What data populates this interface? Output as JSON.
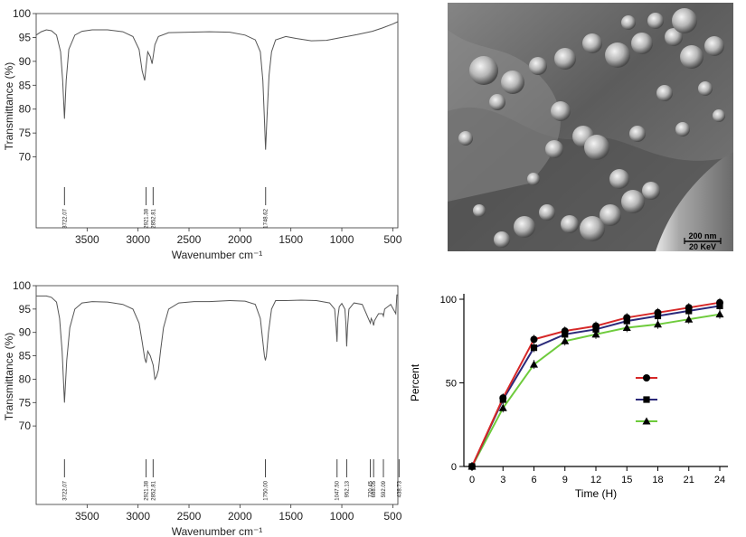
{
  "chart_data": [
    {
      "type": "line",
      "panel": "ftir-top",
      "ylabel": "Transmittance (%)",
      "xlabel": "Wavenumber cm⁻¹",
      "xlim": [
        4000,
        450
      ],
      "ylim": [
        65,
        100
      ],
      "xticks": [
        3500,
        3000,
        2500,
        2000,
        1500,
        1000,
        500
      ],
      "yticks": [
        70,
        75,
        80,
        85,
        90,
        95,
        100
      ],
      "peak_labels": [
        "3722.07",
        "2921.38",
        "2852.81",
        "1748.62"
      ],
      "peak_x": [
        3722,
        2921,
        2852,
        1748
      ],
      "series": [
        {
          "x": [
            4000,
            3950,
            3900,
            3850,
            3800,
            3760,
            3740,
            3722,
            3705,
            3680,
            3620,
            3550,
            3450,
            3300,
            3150,
            3050,
            2990,
            2960,
            2935,
            2921,
            2905,
            2880,
            2862,
            2852,
            2835,
            2800,
            2700,
            2500,
            2300,
            2100,
            1950,
            1850,
            1800,
            1775,
            1760,
            1748,
            1735,
            1715,
            1690,
            1650,
            1550,
            1450,
            1300,
            1150,
            1000,
            850,
            700,
            600,
            500,
            450
          ],
          "y": [
            95.5,
            96.2,
            96.6,
            96.4,
            95.5,
            92,
            86,
            78,
            86,
            92.5,
            95.5,
            96.3,
            96.6,
            96.6,
            96.2,
            95.2,
            92.5,
            88,
            86,
            89,
            92,
            91,
            89.5,
            91,
            93.5,
            95.2,
            96,
            96.1,
            96.2,
            96.1,
            95.5,
            94.5,
            92,
            86,
            78,
            71.5,
            78,
            87,
            92,
            94.5,
            95.2,
            94.8,
            94.3,
            94.4,
            95,
            95.6,
            96.3,
            97,
            97.8,
            98.3
          ]
        }
      ]
    },
    {
      "type": "line",
      "panel": "ftir-bottom",
      "ylabel": "Transmittance (%)",
      "xlabel": "Wavenumber cm⁻¹",
      "xlim": [
        4000,
        450
      ],
      "ylim": [
        65,
        100
      ],
      "xticks": [
        3500,
        3000,
        2500,
        2000,
        1500,
        1000,
        500
      ],
      "yticks": [
        70,
        75,
        80,
        85,
        90,
        95,
        100
      ],
      "peak_labels": [
        "3722.07",
        "2921.38",
        "2852.81",
        "1750.00",
        "1047.50",
        "952.13",
        "720.45",
        "688.05",
        "592.09",
        "438.73"
      ],
      "peak_x": [
        3722,
        2921,
        2852,
        1750,
        1047,
        952,
        720,
        688,
        592,
        438
      ],
      "series": [
        {
          "x": [
            4000,
            3950,
            3900,
            3850,
            3800,
            3770,
            3745,
            3722,
            3700,
            3670,
            3620,
            3550,
            3450,
            3300,
            3150,
            3050,
            2990,
            2960,
            2935,
            2921,
            2905,
            2880,
            2852,
            2835,
            2820,
            2800,
            2780,
            2750,
            2700,
            2600,
            2450,
            2300,
            2100,
            1950,
            1850,
            1800,
            1775,
            1760,
            1750,
            1740,
            1720,
            1690,
            1650,
            1550,
            1400,
            1250,
            1120,
            1070,
            1055,
            1047,
            1040,
            1025,
            1000,
            970,
            960,
            952,
            944,
            930,
            880,
            800,
            760,
            740,
            720,
            712,
            700,
            688,
            680,
            640,
            600,
            592,
            580,
            520,
            470,
            460,
            450
          ],
          "y": [
            97.8,
            97.8,
            97.8,
            97.5,
            96.5,
            93,
            86,
            75,
            84,
            91,
            95,
            96.3,
            96.6,
            96.5,
            96,
            95,
            92,
            88,
            84.5,
            83.5,
            86,
            85,
            83,
            80,
            80.5,
            82,
            86,
            91,
            95,
            96.3,
            96.6,
            96.6,
            96.8,
            96.7,
            96,
            93,
            88,
            85,
            84,
            85,
            90,
            95,
            96.8,
            96.8,
            96.9,
            96.8,
            96.3,
            95,
            91,
            88,
            93,
            95.5,
            96.2,
            95,
            92,
            87,
            91,
            95,
            96.3,
            96,
            94,
            93,
            92,
            93,
            92.5,
            91.5,
            92.5,
            94,
            94,
            93.5,
            95,
            96,
            94,
            98,
            98
          ]
        }
      ]
    },
    {
      "type": "line",
      "panel": "release",
      "xlabel": "Time (H)",
      "ylabel": "Percent",
      "xlim": [
        0,
        24
      ],
      "ylim": [
        0,
        100
      ],
      "xticks": [
        0,
        3,
        6,
        9,
        12,
        15,
        18,
        21,
        24
      ],
      "yticks": [
        0,
        50,
        100
      ],
      "x": [
        0,
        3,
        6,
        9,
        12,
        15,
        18,
        21,
        24
      ],
      "series": [
        {
          "color": "#d62828",
          "marker": "circle",
          "values": [
            0,
            41,
            76,
            81,
            84,
            89,
            92,
            95,
            98
          ]
        },
        {
          "color": "#2b2a7a",
          "marker": "square",
          "values": [
            0,
            40,
            71,
            79,
            82,
            87,
            90,
            93,
            96
          ]
        },
        {
          "color": "#6ecb3c",
          "marker": "triangle",
          "values": [
            0,
            35,
            61,
            75,
            79,
            83,
            85,
            88,
            91
          ]
        }
      ],
      "legend": {
        "placement": "center-right",
        "entries": [
          "",
          "",
          ""
        ]
      }
    }
  ],
  "sem": {
    "scale_bar": "200 nm",
    "voltage": "20 KeV"
  }
}
